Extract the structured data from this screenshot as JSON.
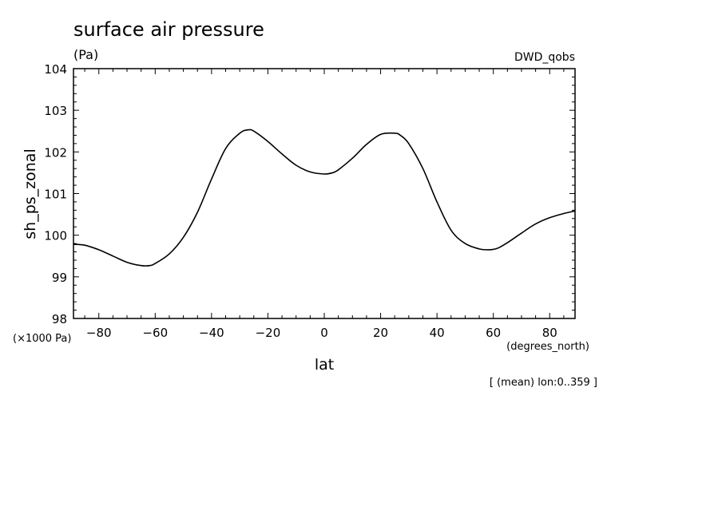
{
  "chart_data": {
    "type": "line",
    "title": "surface air pressure",
    "units_label": "(Pa)",
    "source_label": "DWD_qobs",
    "ylabel": "sh_ps_zonal",
    "xlabel": "lat",
    "x_units_label": "(degrees_north)",
    "y_scale_label": "(×1000 Pa)",
    "footnote": "[ (mean) lon:0..359 ]",
    "xlim": [
      -89,
      89
    ],
    "ylim": [
      98,
      104
    ],
    "xticks": [
      -80,
      -60,
      -40,
      -20,
      0,
      20,
      40,
      60,
      80
    ],
    "xtick_labels": [
      "−80",
      "−60",
      "−40",
      "−20",
      "0",
      "20",
      "40",
      "60",
      "80"
    ],
    "yticks": [
      98,
      99,
      100,
      101,
      102,
      103,
      104
    ],
    "ytick_labels": [
      "98",
      "99",
      "100",
      "101",
      "102",
      "103",
      "104"
    ],
    "grid": false,
    "series": [
      {
        "color": "#000000",
        "x": [
          -89,
          -85,
          -80,
          -75,
          -70,
          -65,
          -62,
          -60,
          -55,
          -50,
          -45,
          -40,
          -35,
          -30,
          -27,
          -25,
          -20,
          -15,
          -10,
          -5,
          0,
          3,
          5,
          10,
          15,
          20,
          25,
          27,
          30,
          35,
          40,
          45,
          50,
          55,
          58,
          60,
          62,
          65,
          70,
          75,
          80,
          85,
          89
        ],
        "y": [
          99.78,
          99.76,
          99.65,
          99.5,
          99.35,
          99.27,
          99.27,
          99.32,
          99.55,
          99.95,
          100.55,
          101.35,
          102.08,
          102.45,
          102.53,
          102.5,
          102.25,
          101.95,
          101.68,
          101.52,
          101.47,
          101.5,
          101.57,
          101.85,
          102.18,
          102.42,
          102.45,
          102.4,
          102.2,
          101.6,
          100.8,
          100.12,
          99.8,
          99.67,
          99.65,
          99.66,
          99.7,
          99.82,
          100.05,
          100.27,
          100.42,
          100.52,
          100.58
        ]
      }
    ]
  }
}
